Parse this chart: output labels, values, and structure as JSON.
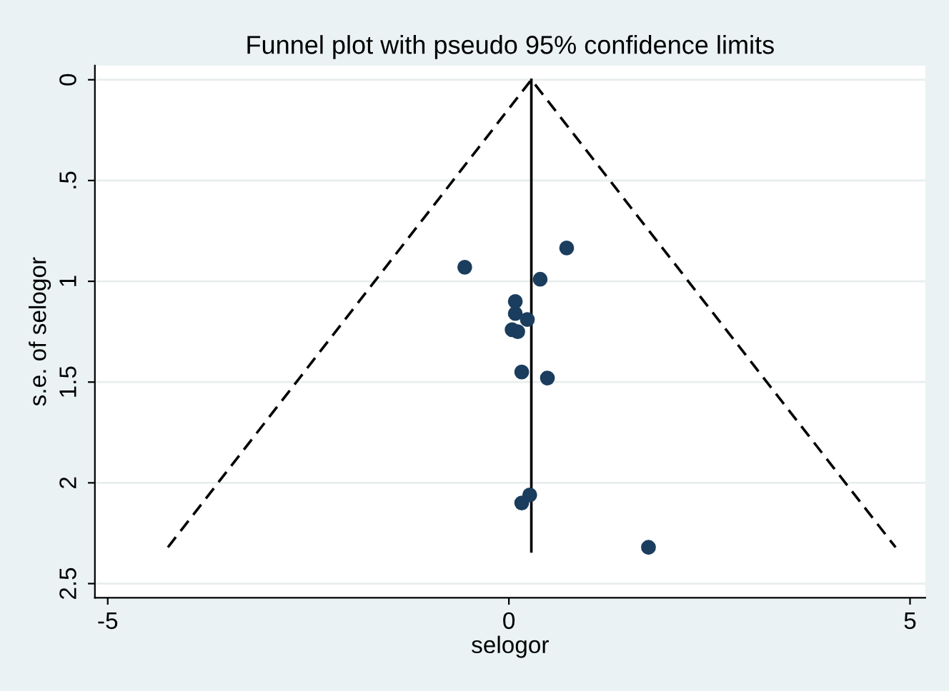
{
  "chart_data": {
    "type": "scatter",
    "title": "Funnel plot with pseudo 95% confidence limits",
    "xlabel": "selogor",
    "ylabel": "s.e. of selogor",
    "series": [
      {
        "color": "#1b3d5e",
        "marker": "circle",
        "x": [
          0.72,
          -0.55,
          0.39,
          0.08,
          0.08,
          0.23,
          0.04,
          0.11,
          0.16,
          0.48,
          0.26,
          0.16,
          1.74
        ],
        "values": [
          0.835,
          0.93,
          0.99,
          1.1,
          1.16,
          1.19,
          1.24,
          1.25,
          1.45,
          1.48,
          2.06,
          2.1,
          2.32
        ]
      },
      {
        "type": "line",
        "color": "#000000",
        "line_style": "dashed",
        "x": [
          -4.25,
          0.28,
          4.82
        ],
        "values": [
          2.32,
          0,
          2.32
        ]
      },
      {
        "type": "line",
        "color": "#000000",
        "line_style": "solid",
        "x": [
          0.28,
          0.28
        ],
        "values": [
          0,
          2.34
        ]
      }
    ],
    "xlim": [
      -5.16,
      5.19
    ],
    "xticks": [
      -5,
      0,
      5
    ],
    "ylim": [
      2.57,
      -0.07
    ],
    "yticks": [
      0,
      {
        "value": 0.5,
        "label": ".5"
      },
      1,
      1.5,
      2,
      2.5
    ],
    "grid": "y"
  }
}
